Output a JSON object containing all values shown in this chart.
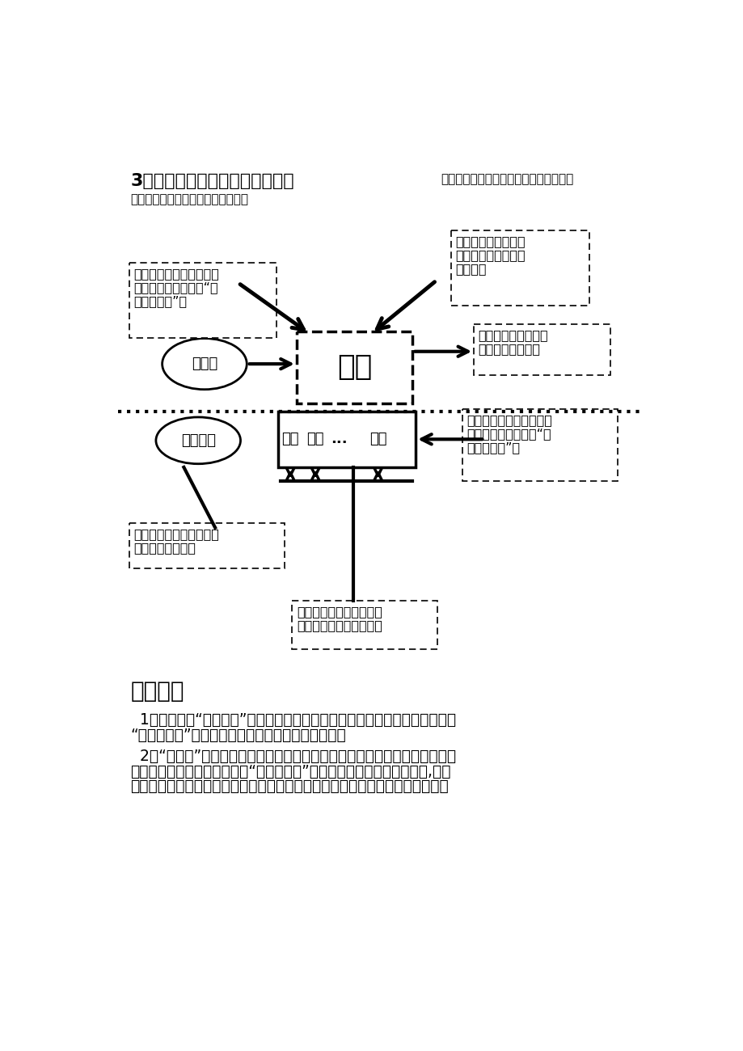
{
  "bg_color": "#ffffff",
  "title_bold": "3、几种日常业务单据的使用图解",
  "title_normal_1": "（请区别使用几种不同的业务单据的使用",
  "title_normal_2": "方法以及由该单据产生的数据变化）",
  "warehouse_label": "仓库",
  "level1_label": "一级仓",
  "non_level1_label": "非一级仓",
  "sub_labels": [
    "煮炖",
    "热菜",
    "...",
    "吧台"
  ],
  "rukudan_line1": "入库单（只能进入一级仓",
  "rukudan_line2": "库，审核后对应生成“供",
  "rukudan_line3": "货商应付单”）",
  "tuihuodan_line1": "退货单（从各仓库退",
  "tuihuodan_line2": "货，一级及非一级库",
  "tuihuodan_line3": "都可以）",
  "lingyongdan_line1": "领用单（从一级仓库",
  "lingyongdan_line2": "领用到各分仓库）",
  "zhibodan_line1": "直拨单（只能进入二级仓",
  "zhibodan_line2": "库，审核后对应生成“供",
  "zhibodan_line3": "货商应付单”）",
  "tuikudan_line1": "退库单（从各非一级仓库",
  "tuikudan_line2": "领用到一级仓库）",
  "diaobodan_line1": "店内调拨单（在各非一级",
  "diaobodan_line2": "仓之间进行品项的调拨）",
  "notice_title": "请注意：",
  "notice_text1_1": "  1、在选择了“直接耗用”的单据，在单据审核后，品项在入库的同时出库，以",
  "notice_text1_2": "“其他出库单”的形式出库，不产生物料耗用的数据。",
  "notice_text2_1": "  2、“盘点单”用来在月中任何时间对库存数量进行调整处理，以达到账面数量",
  "notice_text2_2": "与实际数量即时核对的目的。“月末盘点单”只在月末对库存数量进行盘点,将账",
  "notice_text2_3": "面数量调整为实际数量，并将调整后的数量做为下一个月的期初数量。两种盘点"
}
